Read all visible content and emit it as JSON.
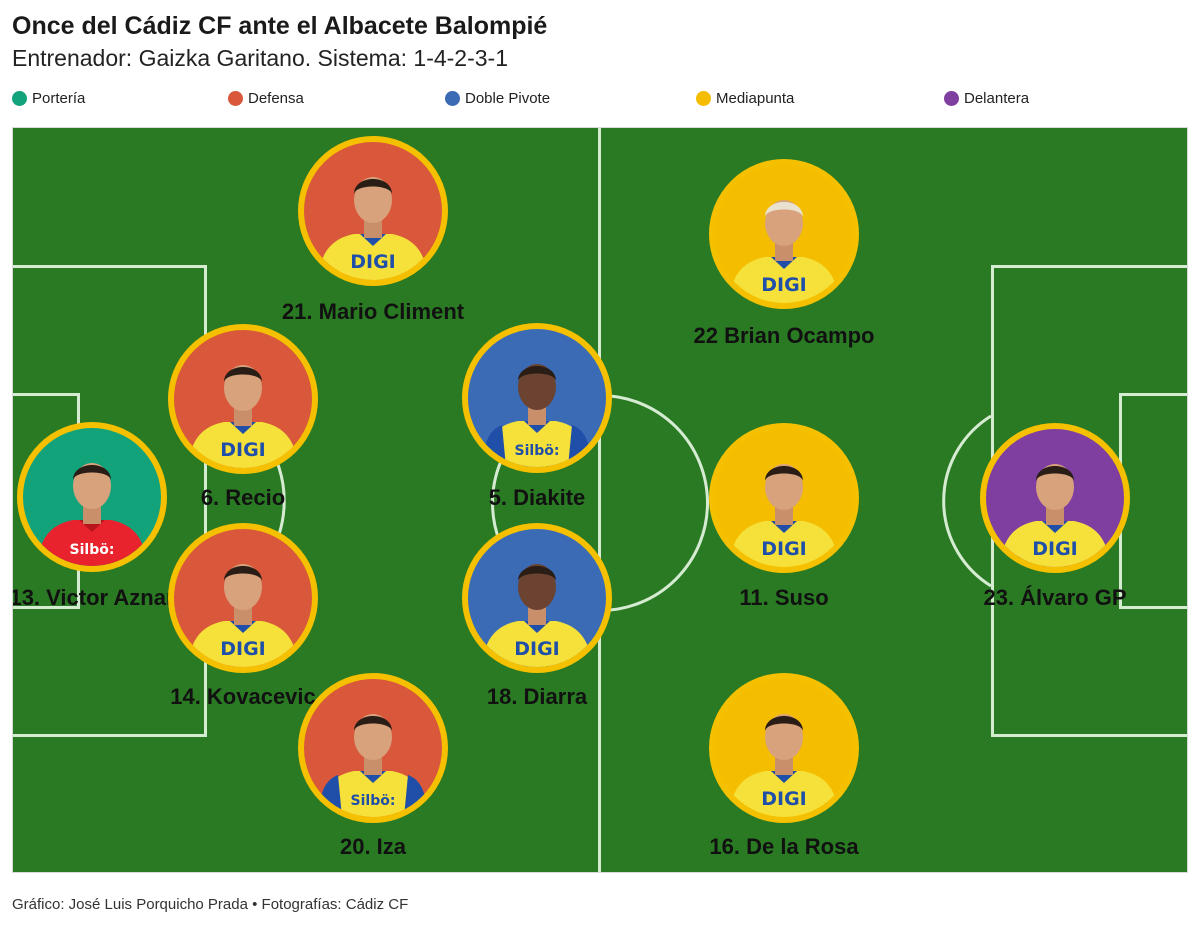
{
  "header": {
    "title": "Once del Cádiz CF ante el Albacete Balompié",
    "subtitle": "Entrenador: Gaizka Garitano. Sistema: 1-4-2-3-1"
  },
  "legend": [
    {
      "key": "porteria",
      "label": "Portería",
      "color": "#12a37a"
    },
    {
      "key": "defensa",
      "label": "Defensa",
      "color": "#d9573a"
    },
    {
      "key": "pivote",
      "label": "Doble Pivote",
      "color": "#3b6bb5"
    },
    {
      "key": "mediapunta",
      "label": "Mediapunta",
      "color": "#f5bd00"
    },
    {
      "key": "delantera",
      "label": "Delantera",
      "color": "#7e3fa0"
    }
  ],
  "players": [
    {
      "id": "aznar",
      "name": "13. Victor Aznar",
      "role": "porteria",
      "shirt": "red",
      "sponsor": "Silbö:"
    },
    {
      "id": "climent",
      "name": "21. Mario Climent",
      "role": "defensa",
      "shirt": "yellow",
      "sponsor": "DIGI"
    },
    {
      "id": "recio",
      "name": "6. Recio",
      "role": "defensa",
      "shirt": "yellow",
      "sponsor": "DIGI"
    },
    {
      "id": "kovacevic",
      "name": "14. Kovacevic",
      "role": "defensa",
      "shirt": "yellow",
      "sponsor": "DIGI"
    },
    {
      "id": "iza",
      "name": "20. Iza",
      "role": "defensa",
      "shirt": "yellow-blue",
      "sponsor": "Silbö:"
    },
    {
      "id": "diakite",
      "name": "5. Diakite",
      "role": "pivote",
      "shirt": "yellow-blue",
      "sponsor": "Silbö:"
    },
    {
      "id": "diarra",
      "name": "18. Diarra",
      "role": "pivote",
      "shirt": "yellow",
      "sponsor": "DIGI"
    },
    {
      "id": "ocampo",
      "name": "22 Brian Ocampo",
      "role": "mediapunta",
      "shirt": "yellow",
      "sponsor": "DIGI"
    },
    {
      "id": "suso",
      "name": "11. Suso",
      "role": "mediapunta",
      "shirt": "yellow",
      "sponsor": "DIGI"
    },
    {
      "id": "delarosa",
      "name": "16. De la Rosa",
      "role": "mediapunta",
      "shirt": "yellow",
      "sponsor": "DIGI"
    },
    {
      "id": "alvaro",
      "name": "23. Álvaro GP",
      "role": "delantera",
      "shirt": "yellow",
      "sponsor": "DIGI"
    }
  ],
  "footer": {
    "credits": "Gráfico: José Luis Porquicho Prada • Fotografías: Cádiz CF"
  }
}
